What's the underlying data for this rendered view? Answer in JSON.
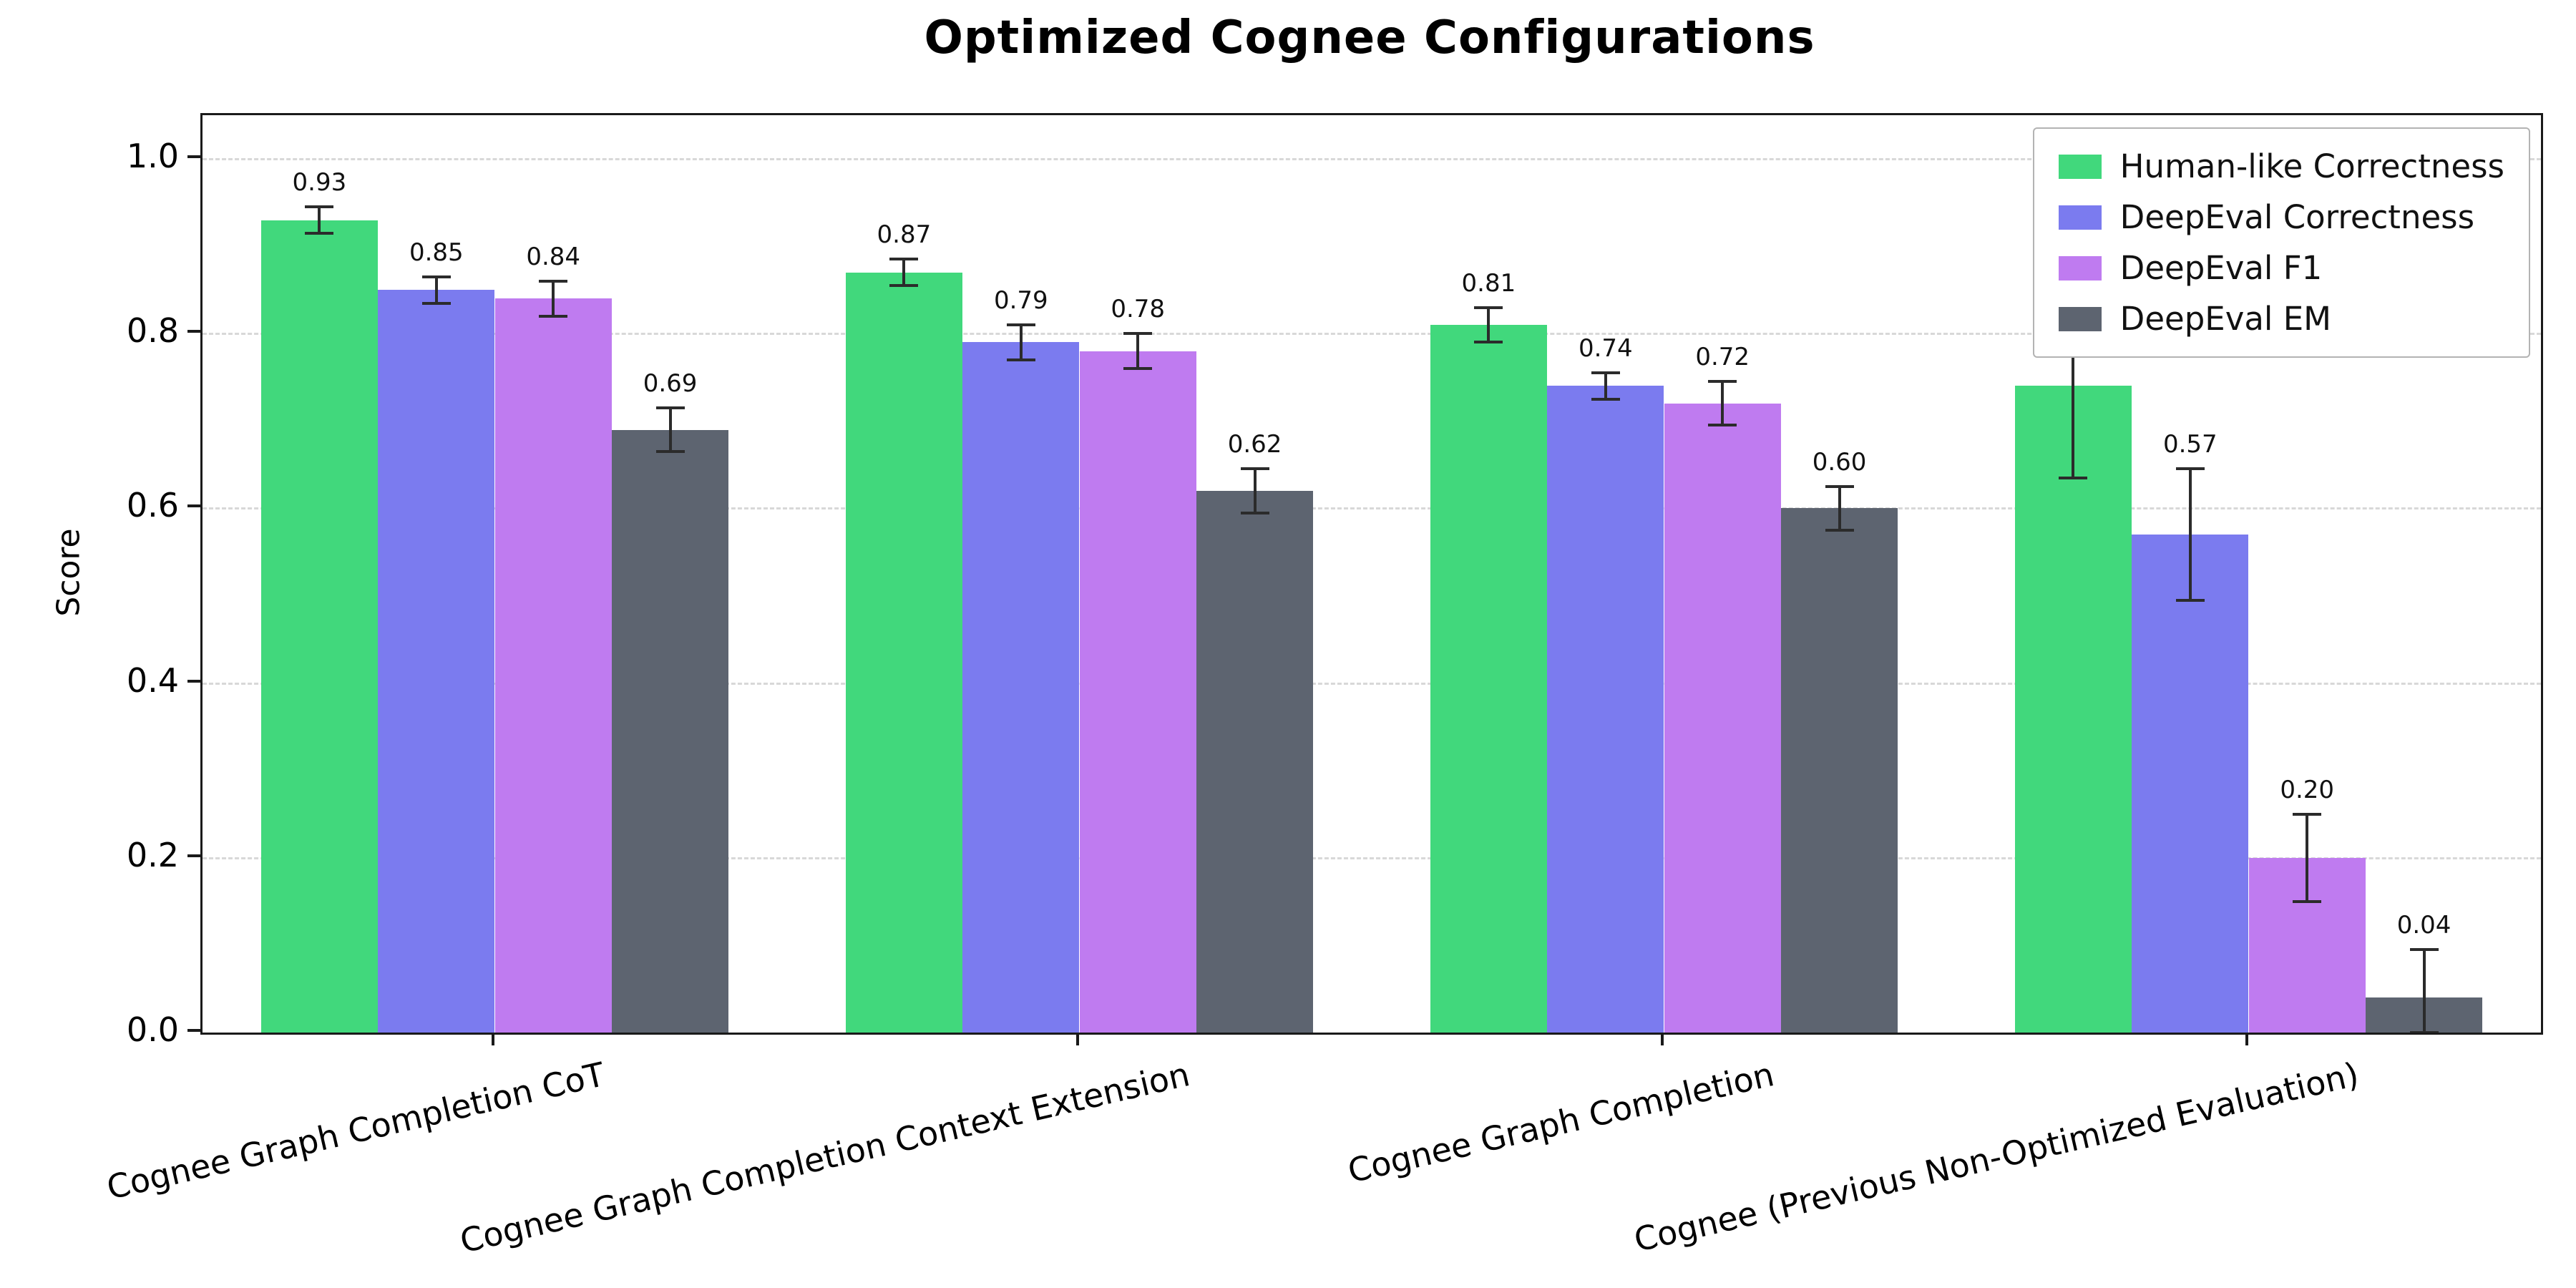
{
  "title": "Optimized Cognee Configurations",
  "chart_data": {
    "type": "bar",
    "title": "Optimized Cognee Configurations",
    "xlabel": "",
    "ylabel": "Score",
    "ylim": [
      0,
      1.05
    ],
    "yticks": [
      0.0,
      0.2,
      0.4,
      0.6,
      0.8,
      1.0
    ],
    "grid": "horizontal-dashed",
    "legend_position": "upper-right",
    "categories": [
      "Cognee Graph Completion CoT",
      "Cognee Graph Completion Context Extension",
      "Cognee Graph Completion",
      "Cognee (Previous Non-Optimized Evaluation)"
    ],
    "series": [
      {
        "name": "Human-like Correctness",
        "color": "#41d87c",
        "values": [
          0.93,
          0.87,
          0.81,
          0.74
        ],
        "errors": [
          0.015,
          0.015,
          0.02,
          0.105
        ]
      },
      {
        "name": "DeepEval Correctness",
        "color": "#7b7bef",
        "values": [
          0.85,
          0.79,
          0.74,
          0.57
        ],
        "errors": [
          0.015,
          0.02,
          0.015,
          0.075
        ]
      },
      {
        "name": "DeepEval F1",
        "color": "#bf7bf0",
        "values": [
          0.84,
          0.78,
          0.72,
          0.2
        ],
        "errors": [
          0.02,
          0.02,
          0.025,
          0.05
        ]
      },
      {
        "name": "DeepEval EM",
        "color": "#5d6470",
        "values": [
          0.69,
          0.62,
          0.6,
          0.04
        ],
        "errors": [
          0.025,
          0.025,
          0.025,
          0.055
        ]
      }
    ]
  }
}
